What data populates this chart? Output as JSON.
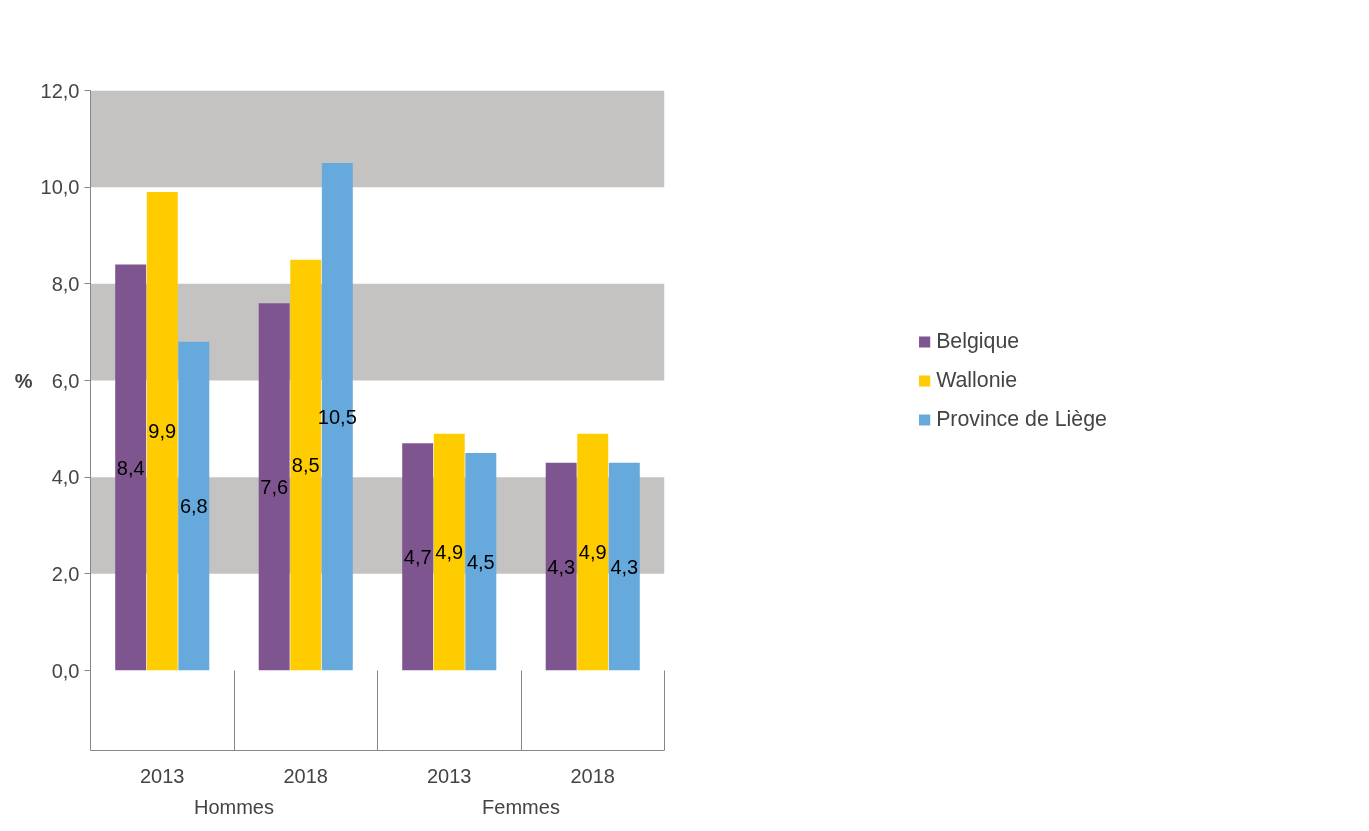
{
  "chart_data": {
    "type": "bar",
    "ylabel": "%",
    "categories": [
      "2013",
      "2018",
      "2013",
      "2018"
    ],
    "annotations": [
      "Hommes",
      "Femmes"
    ],
    "series": [
      {
        "name": "Belgique",
        "color": "#7f5590",
        "values": [
          8.4,
          7.6,
          4.7,
          4.3
        ],
        "value_labels": [
          "8,4",
          "7,6",
          "4,7",
          "4,3"
        ]
      },
      {
        "name": "Wallonie",
        "color": "#ffcc00",
        "values": [
          9.9,
          8.5,
          4.9,
          4.9
        ],
        "value_labels": [
          "9,9",
          "8,5",
          "4,9",
          "4,9"
        ]
      },
      {
        "name": "Province de Liège",
        "color": "#66a9dc",
        "values": [
          6.8,
          10.5,
          4.5,
          4.3
        ],
        "value_labels": [
          "6,8",
          "10,5",
          "4,5",
          "4,3"
        ]
      }
    ],
    "ylim": [
      0,
      12
    ],
    "yticks": [
      {
        "value": 0,
        "label": "0,0"
      },
      {
        "value": 2,
        "label": "2,0"
      },
      {
        "value": 4,
        "label": "4,0"
      },
      {
        "value": 6,
        "label": "6,0"
      },
      {
        "value": 8,
        "label": "8,0"
      },
      {
        "value": 10,
        "label": "10,0"
      },
      {
        "value": 12,
        "label": "12,0"
      }
    ],
    "bands": [
      {
        "axis": "y",
        "from": 2,
        "to": 4,
        "color": "#c4c3c2"
      },
      {
        "axis": "y",
        "from": 6,
        "to": 8,
        "color": "#c4c3c2"
      },
      {
        "axis": "y",
        "from": 10,
        "to": 12,
        "color": "#c4c3c2"
      }
    ],
    "grid": false,
    "legend": "right"
  }
}
